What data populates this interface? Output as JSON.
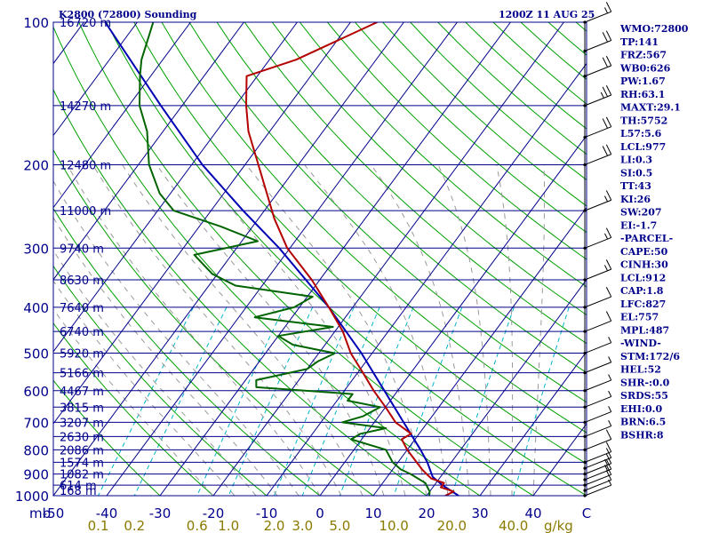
{
  "header": {
    "station": "K2800 (72800) Sounding",
    "time": "1200Z 11 AUG 25"
  },
  "indices": [
    "WMO:72800",
    "TP:141",
    "FRZ:567",
    "WB0:626",
    "PW:1.67",
    "RH:63.1",
    "MAXT:29.1",
    "TH:5752",
    "L57:5.6",
    "LCL:977",
    "LI:0.3",
    "SI:0.5",
    "TT:43",
    "KI:26",
    "SW:207",
    "EI:-1.7",
    "-PARCEL-",
    "CAPE:50",
    "CINH:30",
    "LCL:912",
    "CAP:1.8",
    "LFC:827",
    "EL:757",
    "MPL:487",
    "-WIND-",
    "STM:172/6",
    "HEL:52",
    "SHR-:0.0",
    "SRDS:55",
    "EHI:0.0",
    "BRN:6.5",
    "BSHR:8"
  ],
  "colors": {
    "isobar": "#00008b",
    "isotherm": "#00008b",
    "dry_adiabat": "#00a000",
    "moist_adiabat": "#9a9a9a",
    "mixing_ratio": "#00b4c8",
    "temperature": "#b40000",
    "dewpoint": "#006400",
    "parcel": "#0000b4",
    "wind": "#000000"
  },
  "chart_data": {
    "type": "skew-t log-p sounding",
    "pressure_range_hpa": [
      100,
      1000
    ],
    "temperature_range_c": [
      -50,
      50
    ],
    "pressure_levels": [
      {
        "p": 100,
        "label": "100",
        "height": "16720 m"
      },
      {
        "p": 150,
        "label": "",
        "height": "14270 m"
      },
      {
        "p": 200,
        "label": "200",
        "height": "12480 m"
      },
      {
        "p": 250,
        "label": "",
        "height": "11000 m"
      },
      {
        "p": 300,
        "label": "300",
        "height": "9740 m"
      },
      {
        "p": 350,
        "label": "",
        "height": "8630 m"
      },
      {
        "p": 400,
        "label": "400",
        "height": "7640 m"
      },
      {
        "p": 450,
        "label": "",
        "height": "6740 m"
      },
      {
        "p": 500,
        "label": "500",
        "height": "5920 m"
      },
      {
        "p": 550,
        "label": "",
        "height": "5166 m"
      },
      {
        "p": 600,
        "label": "600",
        "height": "4467 m"
      },
      {
        "p": 650,
        "label": "",
        "height": "3815 m"
      },
      {
        "p": 700,
        "label": "700",
        "height": "3207 m"
      },
      {
        "p": 750,
        "label": "",
        "height": "2630 m"
      },
      {
        "p": 800,
        "label": "800",
        "height": "2086 m"
      },
      {
        "p": 850,
        "label": "",
        "height": "1574 m"
      },
      {
        "p": 900,
        "label": "900",
        "height": "1082 m"
      },
      {
        "p": 950,
        "label": "",
        "height": "614 m"
      },
      {
        "p": 1000,
        "label": "1000",
        "height": "168 m"
      }
    ],
    "temperature_ticks": [
      "-50",
      "-40",
      "-30",
      "-20",
      "-10",
      "0",
      "10",
      "20",
      "30",
      "40",
      "C"
    ],
    "pressure_unit": "mb",
    "mixing_ratio_ticks": [
      {
        "value": 0.1,
        "label": "0.1"
      },
      {
        "value": 0.2,
        "label": "0.2"
      },
      {
        "value": 0.6,
        "label": "0.6"
      },
      {
        "value": 1.0,
        "label": "1.0"
      },
      {
        "value": 2.0,
        "label": "2.0"
      },
      {
        "value": 3.0,
        "label": "3.0"
      },
      {
        "value": 5.0,
        "label": "5.0"
      },
      {
        "value": 10.0,
        "label": "10.0"
      },
      {
        "value": 20.0,
        "label": "20.0"
      },
      {
        "value": 40.0,
        "label": "40.0"
      }
    ],
    "mixing_ratio_unit": "g/kg",
    "temperature": [
      {
        "p": 1000,
        "t": 23.5
      },
      {
        "p": 980,
        "t": 24.5
      },
      {
        "p": 960,
        "t": 21.5
      },
      {
        "p": 940,
        "t": 21.5
      },
      {
        "p": 920,
        "t": 18.5
      },
      {
        "p": 900,
        "t": 17.0
      },
      {
        "p": 880,
        "t": 15.5
      },
      {
        "p": 850,
        "t": 13.5
      },
      {
        "p": 800,
        "t": 10.0
      },
      {
        "p": 760,
        "t": 7.5
      },
      {
        "p": 740,
        "t": 8.5
      },
      {
        "p": 700,
        "t": 4.0
      },
      {
        "p": 650,
        "t": 0.0
      },
      {
        "p": 600,
        "t": -4.5
      },
      {
        "p": 550,
        "t": -9.0
      },
      {
        "p": 500,
        "t": -14.0
      },
      {
        "p": 450,
        "t": -18.5
      },
      {
        "p": 400,
        "t": -24.5
      },
      {
        "p": 350,
        "t": -31.5
      },
      {
        "p": 300,
        "t": -40.5
      },
      {
        "p": 260,
        "t": -47.0
      },
      {
        "p": 200,
        "t": -57.5
      },
      {
        "p": 170,
        "t": -64.0
      },
      {
        "p": 150,
        "t": -68.0
      },
      {
        "p": 130,
        "t": -72.0
      },
      {
        "p": 120,
        "t": -65.0
      },
      {
        "p": 100,
        "t": -55.0
      }
    ],
    "dewpoint": [
      {
        "p": 1000,
        "t": 20.5
      },
      {
        "p": 980,
        "t": 20.0
      },
      {
        "p": 960,
        "t": 19.0
      },
      {
        "p": 940,
        "t": 18.0
      },
      {
        "p": 920,
        "t": 16.0
      },
      {
        "p": 900,
        "t": 14.0
      },
      {
        "p": 880,
        "t": 11.5
      },
      {
        "p": 850,
        "t": 9.0
      },
      {
        "p": 800,
        "t": 6.0
      },
      {
        "p": 760,
        "t": -2.0
      },
      {
        "p": 740,
        "t": -1.0
      },
      {
        "p": 720,
        "t": 3.0
      },
      {
        "p": 700,
        "t": -6.0
      },
      {
        "p": 680,
        "t": -3.0
      },
      {
        "p": 650,
        "t": -1.0
      },
      {
        "p": 630,
        "t": -8.0
      },
      {
        "p": 610,
        "t": -8.0
      },
      {
        "p": 590,
        "t": -27.0
      },
      {
        "p": 570,
        "t": -28.0
      },
      {
        "p": 540,
        "t": -20.0
      },
      {
        "p": 520,
        "t": -19.0
      },
      {
        "p": 500,
        "t": -17.0
      },
      {
        "p": 480,
        "t": -26.0
      },
      {
        "p": 460,
        "t": -30.0
      },
      {
        "p": 440,
        "t": -21.0
      },
      {
        "p": 420,
        "t": -37.0
      },
      {
        "p": 400,
        "t": -31.0
      },
      {
        "p": 380,
        "t": -29.0
      },
      {
        "p": 360,
        "t": -45.0
      },
      {
        "p": 340,
        "t": -51.0
      },
      {
        "p": 310,
        "t": -57.0
      },
      {
        "p": 290,
        "t": -47.0
      },
      {
        "p": 270,
        "t": -56.0
      },
      {
        "p": 250,
        "t": -67.0
      },
      {
        "p": 230,
        "t": -72.0
      },
      {
        "p": 200,
        "t": -78.0
      },
      {
        "p": 170,
        "t": -83.0
      },
      {
        "p": 150,
        "t": -88.0
      },
      {
        "p": 130,
        "t": -92.0
      },
      {
        "p": 120,
        "t": -94.0
      },
      {
        "p": 100,
        "t": -97.0
      }
    ],
    "parcel": [
      {
        "p": 1000,
        "t": 26.0
      },
      {
        "p": 950,
        "t": 21.5
      },
      {
        "p": 912,
        "t": 18.5
      },
      {
        "p": 850,
        "t": 15.5
      },
      {
        "p": 800,
        "t": 12.5
      },
      {
        "p": 700,
        "t": 5.5
      },
      {
        "p": 600,
        "t": -2.5
      },
      {
        "p": 500,
        "t": -12.0
      },
      {
        "p": 400,
        "t": -24.5
      },
      {
        "p": 300,
        "t": -42.0
      },
      {
        "p": 250,
        "t": -54.0
      },
      {
        "p": 200,
        "t": -68.0
      },
      {
        "p": 150,
        "t": -84.0
      },
      {
        "p": 100,
        "t": -106.0
      }
    ],
    "wind_barbs": [
      {
        "p": 1000,
        "speed_kt": 5
      },
      {
        "p": 975,
        "speed_kt": 10
      },
      {
        "p": 950,
        "speed_kt": 10
      },
      {
        "p": 925,
        "speed_kt": 15
      },
      {
        "p": 900,
        "speed_kt": 15
      },
      {
        "p": 875,
        "speed_kt": 10
      },
      {
        "p": 850,
        "speed_kt": 10
      },
      {
        "p": 800,
        "speed_kt": 10
      },
      {
        "p": 750,
        "speed_kt": 5
      },
      {
        "p": 700,
        "speed_kt": 5
      },
      {
        "p": 650,
        "speed_kt": 5
      },
      {
        "p": 600,
        "speed_kt": 5
      },
      {
        "p": 550,
        "speed_kt": 5
      },
      {
        "p": 500,
        "speed_kt": 5
      },
      {
        "p": 450,
        "speed_kt": 10
      },
      {
        "p": 400,
        "speed_kt": 10
      },
      {
        "p": 350,
        "speed_kt": 15
      },
      {
        "p": 300,
        "speed_kt": 15
      },
      {
        "p": 250,
        "speed_kt": 15
      },
      {
        "p": 200,
        "speed_kt": 20
      },
      {
        "p": 175,
        "speed_kt": 20
      },
      {
        "p": 150,
        "speed_kt": 25
      },
      {
        "p": 130,
        "speed_kt": 20
      },
      {
        "p": 115,
        "speed_kt": 20
      },
      {
        "p": 100,
        "speed_kt": 15
      }
    ]
  }
}
